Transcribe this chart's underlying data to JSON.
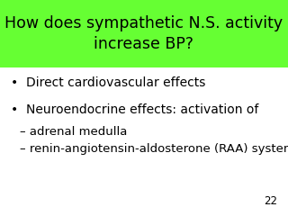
{
  "title_line1": "How does sympathetic N.S. activity",
  "title_line2": "increase BP?",
  "title_bg_color": "#66ff33",
  "title_text_color": "#000000",
  "slide_bg_color": "#ffffff",
  "bullet1": "Direct cardiovascular effects",
  "bullet2": "Neuroendocrine effects: activation of",
  "sub1": "– adrenal medulla",
  "sub2": "– renin-angiotensin-aldosterone (RAA) system",
  "page_number": "22",
  "text_color": "#000000",
  "title_fontsize": 12.5,
  "body_fontsize": 10.0,
  "sub_fontsize": 9.5,
  "page_fontsize": 8.5
}
